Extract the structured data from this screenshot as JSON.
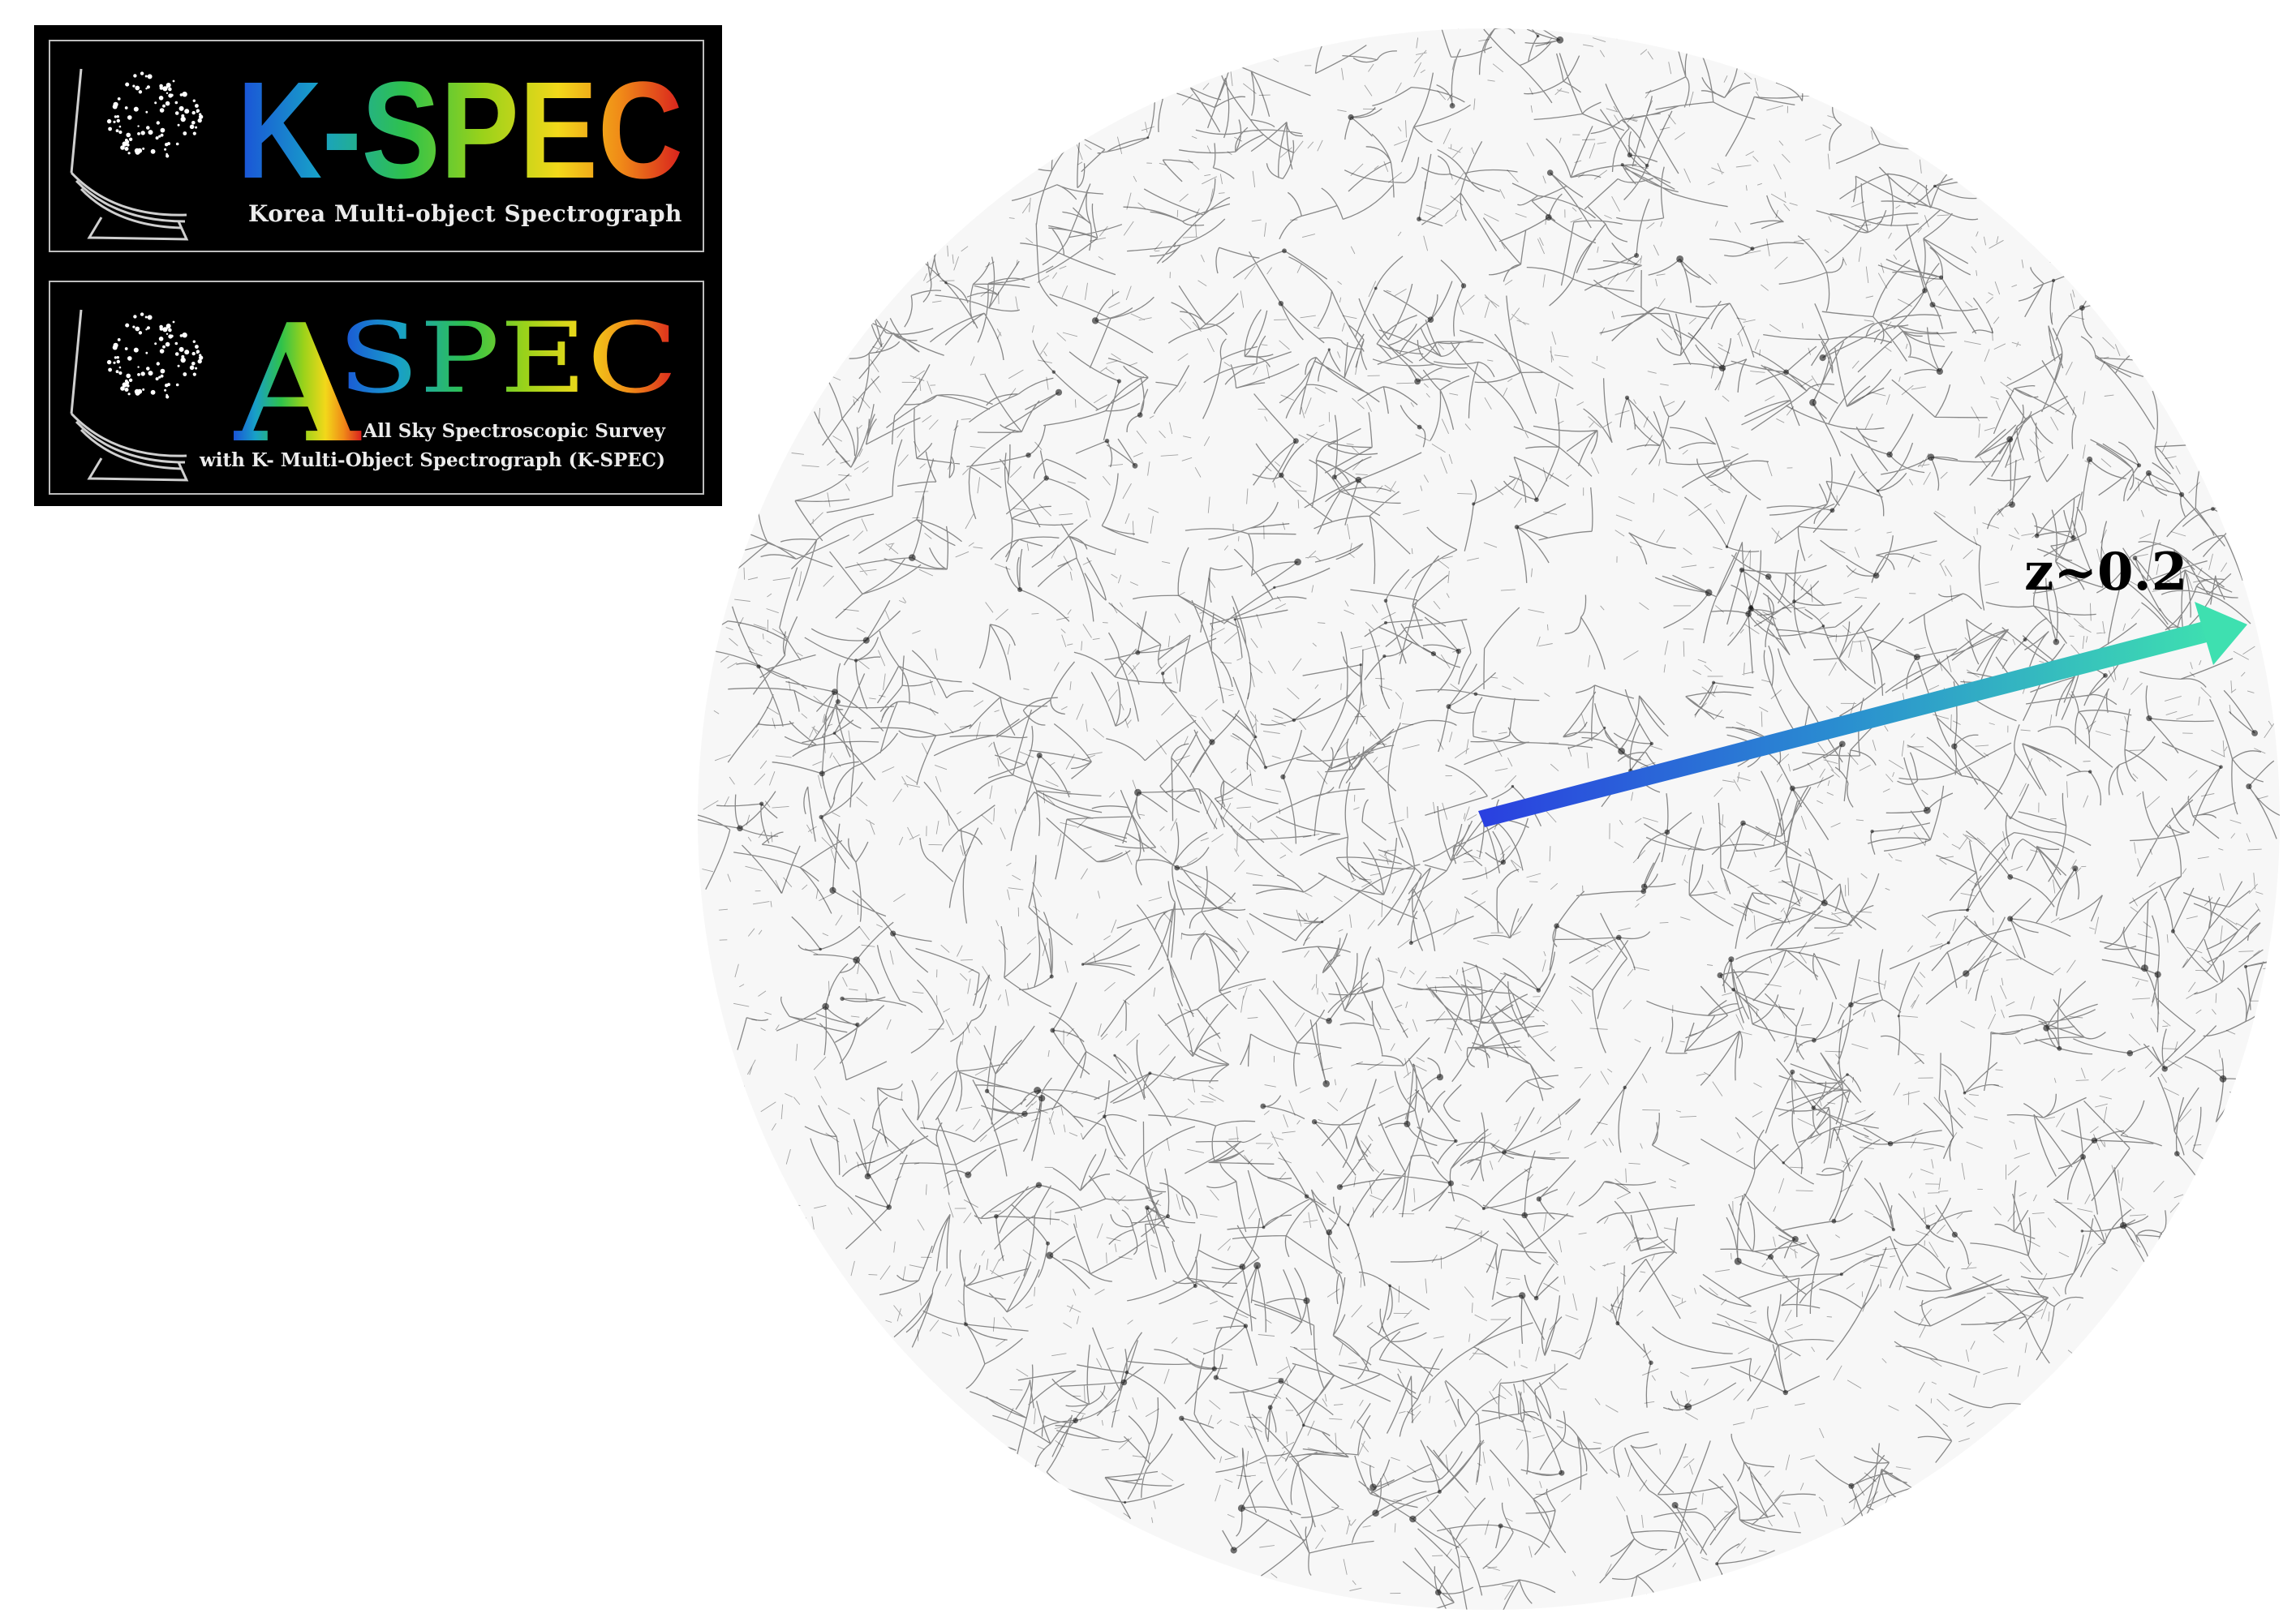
{
  "logos": {
    "kspec": {
      "wordmark": "K-SPEC",
      "subtitle": "Korea Multi-object Spectrograph",
      "icon": "telescope-starfield-icon"
    },
    "aspec": {
      "wordmark_initial": "A",
      "wordmark_rest": "SPEC",
      "subtitle_line1": "All Sky Spectroscopic Survey",
      "subtitle_line2": "with K- Multi-Object Spectrograph (K-SPEC)",
      "icon": "telescope-starfield-icon"
    },
    "gradient_colors": [
      "#1a4fd8",
      "#18a0c8",
      "#2fc24a",
      "#9ad21a",
      "#f2d81a",
      "#f08a18",
      "#d81e1e"
    ]
  },
  "map": {
    "redshift_label": "z~0.2",
    "arrow_colors": [
      "#2a3fe0",
      "#2a8fd0",
      "#3ee0b0"
    ],
    "filament_color": "#000000",
    "background_color": "#ffffff"
  }
}
